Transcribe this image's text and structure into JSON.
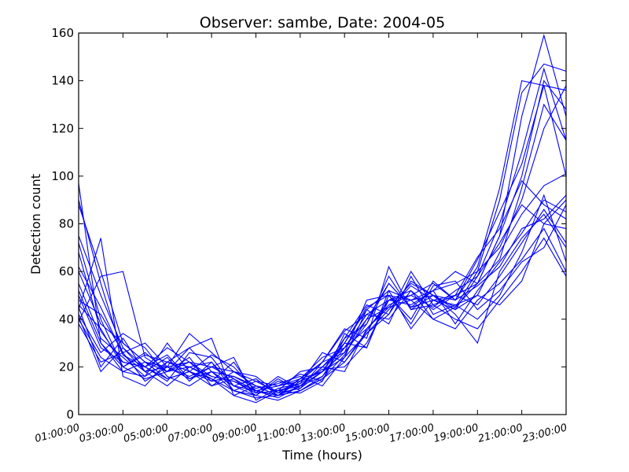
{
  "chart_data": {
    "type": "line",
    "title": "Observer: sambe, Date: 2004-05",
    "xlabel": "Time (hours)",
    "ylabel": "Detection count",
    "xlim": [
      1,
      23
    ],
    "ylim": [
      0,
      160
    ],
    "x_tick_labels": [
      "01:00:00",
      "03:00:00",
      "05:00:00",
      "07:00:00",
      "09:00:00",
      "11:00:00",
      "13:00:00",
      "15:00:00",
      "17:00:00",
      "19:00:00",
      "21:00:00",
      "23:00:00"
    ],
    "x_ticks": [
      1,
      3,
      5,
      7,
      9,
      11,
      13,
      15,
      17,
      19,
      21,
      23
    ],
    "y_ticks": [
      0,
      20,
      40,
      60,
      80,
      100,
      120,
      140,
      160
    ],
    "line_color": "#0000ff",
    "grid": false,
    "legend": false,
    "x": [
      1,
      2,
      3,
      4,
      5,
      6,
      7,
      8,
      9,
      10,
      11,
      12,
      13,
      14,
      15,
      16,
      17,
      18,
      19,
      20,
      21,
      22,
      23
    ],
    "series": [
      {
        "values": [
          97,
          30,
          20,
          15,
          18,
          22,
          20,
          15,
          8,
          6,
          10,
          15,
          25,
          40,
          55,
          45,
          48,
          50,
          55,
          75,
          100,
          140,
          128
        ]
      },
      {
        "values": [
          90,
          55,
          25,
          20,
          15,
          18,
          15,
          10,
          7,
          8,
          12,
          18,
          30,
          45,
          50,
          48,
          52,
          55,
          60,
          70,
          90,
          120,
          138
        ]
      },
      {
        "values": [
          88,
          60,
          30,
          22,
          20,
          15,
          18,
          12,
          10,
          8,
          15,
          22,
          35,
          42,
          48,
          50,
          45,
          52,
          58,
          80,
          110,
          145,
          115
        ]
      },
      {
        "values": [
          75,
          50,
          28,
          18,
          12,
          20,
          15,
          8,
          5,
          10,
          12,
          20,
          28,
          40,
          45,
          55,
          50,
          48,
          65,
          85,
          105,
          138,
          136
        ]
      },
      {
        "values": [
          72,
          40,
          20,
          25,
          22,
          18,
          12,
          15,
          10,
          12,
          15,
          18,
          32,
          38,
          55,
          45,
          52,
          60,
          55,
          65,
          95,
          130,
          115
        ]
      },
      {
        "values": [
          68,
          35,
          22,
          20,
          25,
          15,
          20,
          18,
          12,
          8,
          10,
          15,
          22,
          35,
          48,
          52,
          40,
          45,
          55,
          75,
          125,
          159,
          125
        ]
      },
      {
        "values": [
          62,
          45,
          25,
          18,
          20,
          22,
          16,
          14,
          9,
          10,
          18,
          20,
          30,
          44,
          52,
          48,
          50,
          45,
          60,
          90,
          135,
          147,
          144
        ]
      },
      {
        "values": [
          60,
          38,
          30,
          22,
          18,
          20,
          22,
          12,
          8,
          14,
          12,
          16,
          28,
          36,
          46,
          50,
          55,
          48,
          62,
          95,
          140,
          138,
          100
        ]
      },
      {
        "values": [
          55,
          32,
          24,
          16,
          22,
          28,
          18,
          10,
          14,
          9,
          11,
          22,
          26,
          38,
          58,
          44,
          46,
          50,
          66,
          78,
          98,
          88,
          82
        ]
      },
      {
        "values": [
          52,
          30,
          18,
          22,
          15,
          18,
          25,
          20,
          10,
          12,
          14,
          18,
          24,
          34,
          44,
          54,
          48,
          46,
          50,
          68,
          84,
          96,
          101
        ]
      },
      {
        "values": [
          50,
          28,
          22,
          20,
          28,
          22,
          14,
          16,
          12,
          10,
          9,
          14,
          32,
          46,
          42,
          56,
          50,
          44,
          58,
          72,
          88,
          80,
          90
        ]
      },
      {
        "values": [
          48,
          42,
          26,
          14,
          20,
          16,
          20,
          24,
          6,
          11,
          13,
          19,
          20,
          30,
          48,
          46,
          52,
          38,
          52,
          64,
          76,
          90,
          85
        ]
      },
      {
        "values": [
          46,
          36,
          20,
          26,
          18,
          24,
          12,
          18,
          16,
          9,
          15,
          24,
          28,
          42,
          40,
          52,
          44,
          50,
          46,
          58,
          72,
          86,
          72
        ]
      },
      {
        "values": [
          45,
          20,
          32,
          18,
          24,
          14,
          22,
          10,
          8,
          15,
          10,
          16,
          30,
          28,
          50,
          40,
          56,
          48,
          54,
          62,
          78,
          82,
          92
        ]
      },
      {
        "values": [
          44,
          74,
          16,
          12,
          22,
          20,
          16,
          14,
          10,
          7,
          12,
          20,
          18,
          36,
          45,
          48,
          40,
          36,
          48,
          55,
          65,
          78,
          60
        ]
      },
      {
        "values": [
          42,
          26,
          34,
          28,
          16,
          12,
          18,
          16,
          11,
          13,
          16,
          12,
          24,
          44,
          38,
          58,
          42,
          46,
          40,
          50,
          68,
          92,
          64
        ]
      },
      {
        "values": [
          41,
          18,
          28,
          20,
          14,
          26,
          24,
          12,
          15,
          8,
          14,
          22,
          36,
          32,
          62,
          44,
          50,
          42,
          30,
          60,
          74,
          84,
          70
        ]
      },
      {
        "values": [
          40,
          24,
          18,
          16,
          30,
          18,
          14,
          22,
          9,
          16,
          11,
          18,
          26,
          48,
          50,
          38,
          54,
          56,
          44,
          52,
          64,
          70,
          88
        ]
      },
      {
        "values": [
          39,
          58,
          60,
          24,
          18,
          28,
          32,
          8,
          12,
          10,
          13,
          26,
          22,
          34,
          42,
          60,
          46,
          40,
          36,
          48,
          60,
          74,
          58
        ]
      },
      {
        "values": [
          38,
          22,
          26,
          30,
          20,
          34,
          26,
          18,
          14,
          12,
          17,
          14,
          34,
          28,
          52,
          36,
          48,
          44,
          50,
          46,
          56,
          80,
          78
        ]
      }
    ]
  }
}
